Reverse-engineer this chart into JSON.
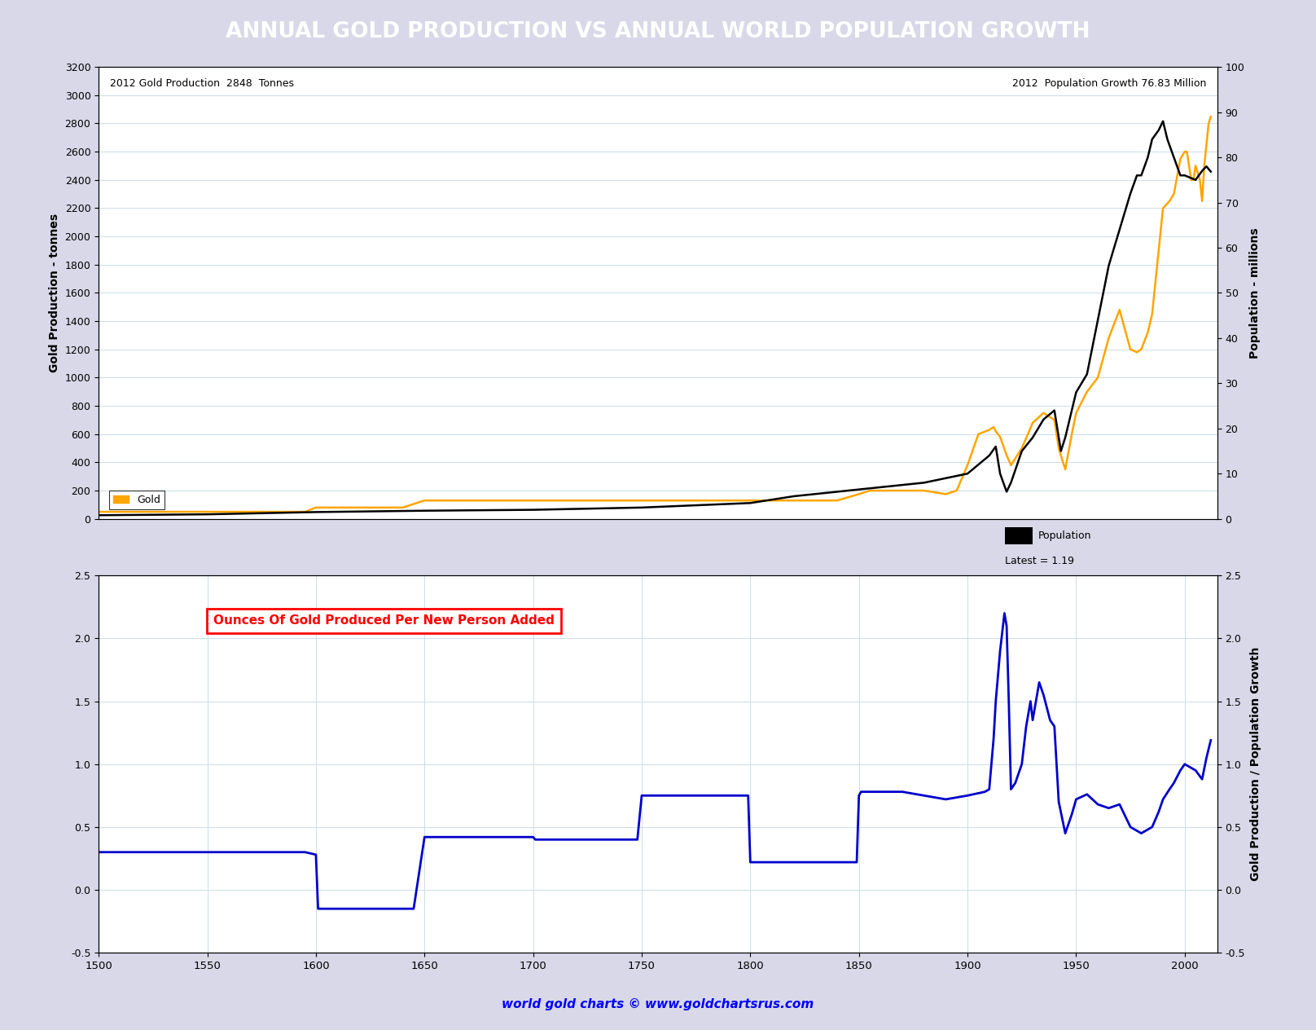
{
  "title": "ANNUAL GOLD PRODUCTION VS ANNUAL WORLD POPULATION GROWTH",
  "title_bg": "#8888EE",
  "annotation_left": "2012 Gold Production  2848  Tonnes",
  "annotation_right": "2012  Population Growth 76.83 Million",
  "xlabel_bottom": "world gold charts © www.goldchartsrus.com",
  "ylabel_left_top": "Gold Production - tonnes",
  "ylabel_right_top": "Population - millions",
  "ylabel_right_bottom": "Gold Production / Population Growth",
  "legend_gold_label": "Gold",
  "legend_pop_label": "Population",
  "legend_latest": "Latest = 1.19",
  "ratio_label": "Ounces Of Gold Produced Per New Person Added",
  "gold_color": "#FFA500",
  "pop_color": "#000000",
  "ratio_color": "#0000CC",
  "xmin": 1500,
  "xmax": 2015,
  "gold_ylim": [
    0,
    3200
  ],
  "gold_yticks": [
    0,
    200,
    400,
    600,
    800,
    1000,
    1200,
    1400,
    1600,
    1800,
    2000,
    2200,
    2400,
    2600,
    2800,
    3000,
    3200
  ],
  "pop_ylim": [
    0,
    100
  ],
  "pop_yticks": [
    0,
    10,
    20,
    30,
    40,
    50,
    60,
    70,
    80,
    90,
    100
  ],
  "ratio_ylim": [
    -0.5,
    2.5
  ],
  "ratio_yticks": [
    -0.5,
    0.0,
    0.5,
    1.0,
    1.5,
    2.0,
    2.5
  ],
  "xticks": [
    1500,
    1550,
    1600,
    1650,
    1700,
    1750,
    1800,
    1850,
    1900,
    1950,
    2000
  ],
  "gold_data": [
    [
      1500,
      50
    ],
    [
      1550,
      50
    ],
    [
      1595,
      50
    ],
    [
      1600,
      80
    ],
    [
      1640,
      80
    ],
    [
      1650,
      130
    ],
    [
      1700,
      130
    ],
    [
      1750,
      130
    ],
    [
      1800,
      130
    ],
    [
      1840,
      130
    ],
    [
      1850,
      175
    ],
    [
      1855,
      200
    ],
    [
      1870,
      200
    ],
    [
      1880,
      200
    ],
    [
      1890,
      175
    ],
    [
      1895,
      200
    ],
    [
      1900,
      380
    ],
    [
      1905,
      600
    ],
    [
      1910,
      630
    ],
    [
      1912,
      650
    ],
    [
      1913,
      620
    ],
    [
      1915,
      580
    ],
    [
      1918,
      450
    ],
    [
      1920,
      380
    ],
    [
      1925,
      500
    ],
    [
      1930,
      680
    ],
    [
      1935,
      750
    ],
    [
      1940,
      700
    ],
    [
      1942,
      500
    ],
    [
      1945,
      350
    ],
    [
      1948,
      600
    ],
    [
      1950,
      750
    ],
    [
      1955,
      900
    ],
    [
      1960,
      1000
    ],
    [
      1965,
      1280
    ],
    [
      1970,
      1480
    ],
    [
      1975,
      1200
    ],
    [
      1978,
      1180
    ],
    [
      1980,
      1200
    ],
    [
      1983,
      1320
    ],
    [
      1985,
      1450
    ],
    [
      1988,
      1900
    ],
    [
      1990,
      2200
    ],
    [
      1993,
      2250
    ],
    [
      1995,
      2300
    ],
    [
      1998,
      2550
    ],
    [
      2000,
      2600
    ],
    [
      2001,
      2600
    ],
    [
      2002,
      2500
    ],
    [
      2003,
      2400
    ],
    [
      2004,
      2400
    ],
    [
      2005,
      2500
    ],
    [
      2006,
      2450
    ],
    [
      2007,
      2400
    ],
    [
      2008,
      2250
    ],
    [
      2009,
      2500
    ],
    [
      2010,
      2650
    ],
    [
      2011,
      2800
    ],
    [
      2012,
      2848
    ]
  ],
  "pop_data": [
    [
      1500,
      0.8
    ],
    [
      1550,
      1.0
    ],
    [
      1600,
      1.5
    ],
    [
      1650,
      1.8
    ],
    [
      1700,
      2.0
    ],
    [
      1750,
      2.5
    ],
    [
      1800,
      3.5
    ],
    [
      1820,
      5.0
    ],
    [
      1830,
      5.5
    ],
    [
      1840,
      6.0
    ],
    [
      1850,
      6.5
    ],
    [
      1860,
      7.0
    ],
    [
      1870,
      7.5
    ],
    [
      1880,
      8.0
    ],
    [
      1890,
      9.0
    ],
    [
      1900,
      10.0
    ],
    [
      1905,
      12.0
    ],
    [
      1910,
      14.0
    ],
    [
      1913,
      16.0
    ],
    [
      1915,
      10.0
    ],
    [
      1918,
      6.0
    ],
    [
      1920,
      8.0
    ],
    [
      1925,
      15.0
    ],
    [
      1930,
      18.0
    ],
    [
      1935,
      22.0
    ],
    [
      1940,
      24.0
    ],
    [
      1943,
      15.0
    ],
    [
      1945,
      18.0
    ],
    [
      1950,
      28.0
    ],
    [
      1955,
      32.0
    ],
    [
      1960,
      44.0
    ],
    [
      1965,
      56.0
    ],
    [
      1970,
      64.0
    ],
    [
      1975,
      72.0
    ],
    [
      1978,
      76.0
    ],
    [
      1980,
      76.0
    ],
    [
      1983,
      80.0
    ],
    [
      1985,
      84.0
    ],
    [
      1988,
      86.0
    ],
    [
      1990,
      88.0
    ],
    [
      1992,
      84.0
    ],
    [
      1995,
      80.0
    ],
    [
      1998,
      76.0
    ],
    [
      2000,
      76.0
    ],
    [
      2005,
      75.0
    ],
    [
      2008,
      77.0
    ],
    [
      2010,
      78.0
    ],
    [
      2012,
      76.83
    ]
  ],
  "ratio_data": [
    [
      1500,
      0.3
    ],
    [
      1595,
      0.3
    ],
    [
      1600,
      0.28
    ],
    [
      1601,
      -0.15
    ],
    [
      1645,
      -0.15
    ],
    [
      1650,
      0.42
    ],
    [
      1700,
      0.42
    ],
    [
      1701,
      0.4
    ],
    [
      1748,
      0.4
    ],
    [
      1750,
      0.75
    ],
    [
      1799,
      0.75
    ],
    [
      1800,
      0.22
    ],
    [
      1849,
      0.22
    ],
    [
      1850,
      0.75
    ],
    [
      1851,
      0.78
    ],
    [
      1855,
      0.78
    ],
    [
      1870,
      0.78
    ],
    [
      1880,
      0.75
    ],
    [
      1890,
      0.72
    ],
    [
      1900,
      0.75
    ],
    [
      1908,
      0.78
    ],
    [
      1910,
      0.8
    ],
    [
      1912,
      1.2
    ],
    [
      1913,
      1.5
    ],
    [
      1915,
      1.9
    ],
    [
      1917,
      2.2
    ],
    [
      1918,
      2.1
    ],
    [
      1919,
      1.5
    ],
    [
      1920,
      0.8
    ],
    [
      1922,
      0.85
    ],
    [
      1925,
      1.0
    ],
    [
      1927,
      1.3
    ],
    [
      1929,
      1.5
    ],
    [
      1930,
      1.35
    ],
    [
      1932,
      1.55
    ],
    [
      1933,
      1.65
    ],
    [
      1935,
      1.55
    ],
    [
      1938,
      1.35
    ],
    [
      1940,
      1.3
    ],
    [
      1942,
      0.7
    ],
    [
      1945,
      0.45
    ],
    [
      1948,
      0.6
    ],
    [
      1950,
      0.72
    ],
    [
      1955,
      0.76
    ],
    [
      1960,
      0.68
    ],
    [
      1965,
      0.65
    ],
    [
      1970,
      0.68
    ],
    [
      1975,
      0.5
    ],
    [
      1980,
      0.45
    ],
    [
      1985,
      0.5
    ],
    [
      1988,
      0.62
    ],
    [
      1990,
      0.72
    ],
    [
      1993,
      0.8
    ],
    [
      1995,
      0.85
    ],
    [
      1998,
      0.95
    ],
    [
      2000,
      1.0
    ],
    [
      2005,
      0.95
    ],
    [
      2008,
      0.88
    ],
    [
      2010,
      1.05
    ],
    [
      2012,
      1.19
    ]
  ],
  "bg_color": "#D8D8E8",
  "plot_bg": "#FFFFFF",
  "grid_color": "#CCDDE8"
}
